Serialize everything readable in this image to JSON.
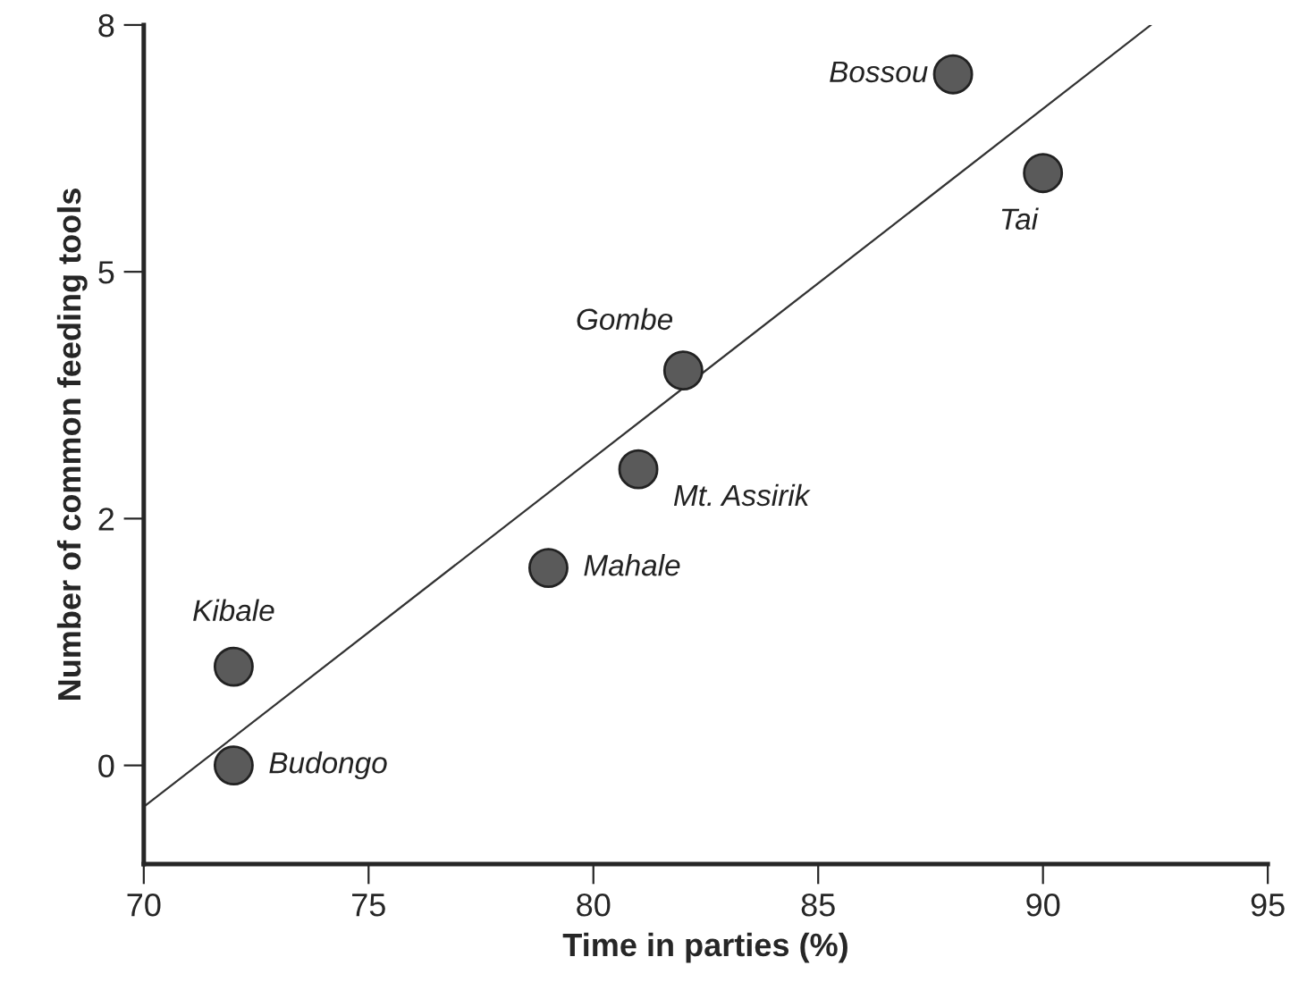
{
  "chart_data": {
    "type": "scatter",
    "xlabel": "Time in parties (%)",
    "ylabel": "Number of common feeding tools",
    "xlim": [
      70,
      95
    ],
    "xticks": [
      70,
      75,
      80,
      85,
      90,
      95
    ],
    "ylim": [
      -1,
      7.5
    ],
    "yticks": [
      0,
      {
        "value": 2.5,
        "label": "2"
      },
      5,
      {
        "value": 7.5,
        "label": "8"
      }
    ],
    "series": [
      {
        "marker": "circle",
        "color": "#5a5a5a",
        "x": [
          72,
          72,
          79,
          81,
          82,
          88,
          90
        ],
        "values": [
          0,
          1,
          2,
          3,
          4,
          7,
          6
        ]
      },
      {
        "type": "line",
        "marker": "none",
        "color": "#333333",
        "x": [
          70,
          92.4
        ],
        "values": [
          -0.42,
          7.5
        ]
      }
    ],
    "grid": false,
    "legend": false,
    "annotations": [
      {
        "text": "Budongo",
        "x": 72,
        "y": 0
      },
      {
        "text": "Kibale",
        "x": 72,
        "y": 1
      },
      {
        "text": "Mahale",
        "x": 79,
        "y": 2
      },
      {
        "text": "Mt. Assirik",
        "x": 81,
        "y": 3
      },
      {
        "text": "Gombe",
        "x": 82,
        "y": 4
      },
      {
        "text": "Bossou",
        "x": 88,
        "y": 7
      },
      {
        "text": "Tai",
        "x": 90,
        "y": 6
      }
    ]
  }
}
